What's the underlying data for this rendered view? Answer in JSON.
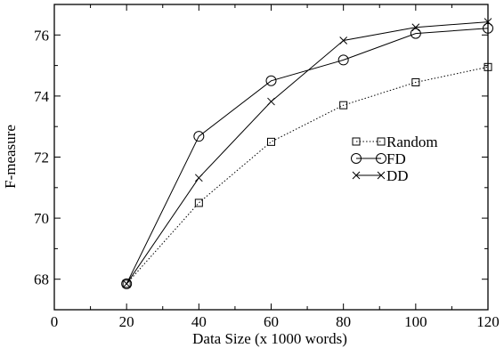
{
  "chart_data": {
    "type": "line",
    "title": "",
    "xlabel": "Data Size (x 1000 words)",
    "ylabel": "F-measure",
    "xlim": [
      0,
      120
    ],
    "ylim": [
      67,
      77
    ],
    "xticks": [
      0,
      20,
      40,
      60,
      80,
      100,
      120
    ],
    "yticks": [
      68,
      70,
      72,
      74,
      76
    ],
    "xtick_labels": [
      "0",
      "20",
      "40",
      "60",
      "80",
      "100",
      "120"
    ],
    "ytick_labels": [
      "68",
      "70",
      "72",
      "74",
      "76"
    ],
    "grid": false,
    "legend_position": "right",
    "series": [
      {
        "name": "Random",
        "marker": "square",
        "line": "dotted",
        "x": [
          20,
          40,
          60,
          80,
          100,
          120
        ],
        "y": [
          67.85,
          70.5,
          72.5,
          73.7,
          74.45,
          74.95
        ]
      },
      {
        "name": "FD",
        "marker": "circle",
        "line": "solid",
        "x": [
          20,
          40,
          60,
          80,
          100,
          120
        ],
        "y": [
          67.85,
          72.68,
          74.5,
          75.18,
          76.05,
          76.22
        ]
      },
      {
        "name": "DD",
        "marker": "x",
        "line": "solid",
        "x": [
          20,
          40,
          60,
          80,
          100,
          120
        ],
        "y": [
          67.85,
          71.32,
          73.82,
          75.82,
          76.25,
          76.43
        ]
      }
    ]
  }
}
